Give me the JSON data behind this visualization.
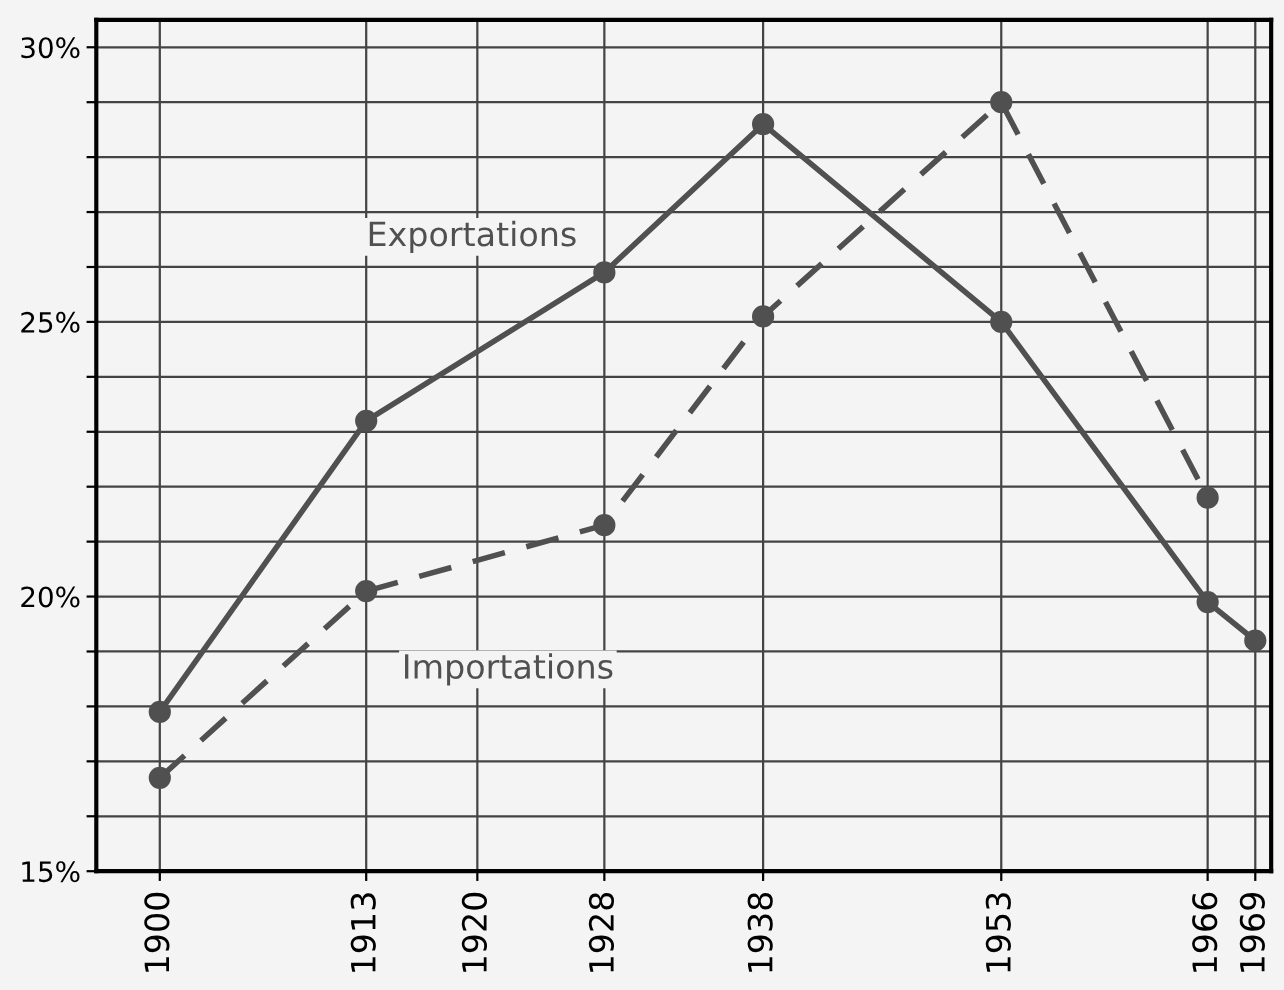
{
  "chart_data": {
    "type": "line",
    "x": [
      1900,
      1913,
      1928,
      1938,
      1953,
      1966,
      1969
    ],
    "series": [
      {
        "name": "Exportations",
        "color": "#505050",
        "line_style": "solid",
        "values": [
          17.9,
          23.2,
          25.9,
          28.6,
          25.0,
          19.9,
          19.2
        ]
      },
      {
        "name": "Importations",
        "color": "#505050",
        "line_style": "dashed",
        "values": [
          16.7,
          20.1,
          21.3,
          25.1,
          29.0,
          21.8,
          null
        ]
      }
    ],
    "xlim": [
      1896,
      1970
    ],
    "xticks": [
      1900,
      1913,
      1920,
      1928,
      1938,
      1953,
      1966,
      1969
    ],
    "ylim": [
      15,
      30.5
    ],
    "yticks": [
      {
        "value": 15,
        "label": "15%"
      },
      {
        "value": 16,
        "label": null
      },
      {
        "value": 17,
        "label": null
      },
      {
        "value": 18,
        "label": null
      },
      {
        "value": 19,
        "label": null
      },
      {
        "value": 20,
        "label": "20%"
      },
      {
        "value": 21,
        "label": null
      },
      {
        "value": 22,
        "label": null
      },
      {
        "value": 23,
        "label": null
      },
      {
        "value": 24,
        "label": null
      },
      {
        "value": 25,
        "label": "25%"
      },
      {
        "value": 26,
        "label": null
      },
      {
        "value": 27,
        "label": null
      },
      {
        "value": 28,
        "label": null
      },
      {
        "value": 29,
        "label": null
      },
      {
        "value": 30,
        "label": "30%"
      }
    ],
    "grid": true,
    "marker": "circle",
    "legend": false
  }
}
